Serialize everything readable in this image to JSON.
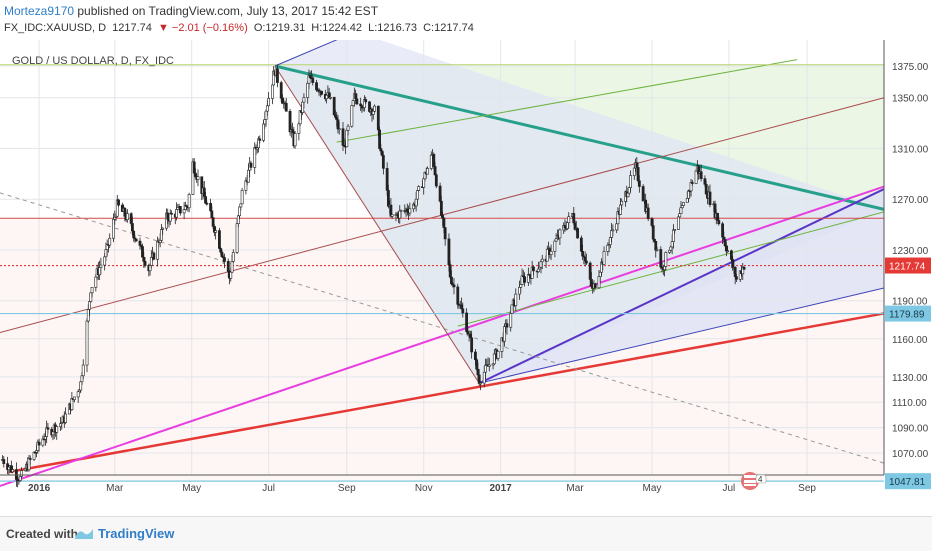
{
  "header": {
    "publisher": "Morteza9170",
    "published_text": " published on TradingView.com, July 13, 2017 15:42 EST",
    "symbol": "FX_IDC:XAUUSD, D",
    "last": "1217.74",
    "change": "▼ −2.01 (−0.16%)",
    "open": "O:1219.31",
    "high": "H:1224.42",
    "low": "L:1216.73",
    "close": "C:1217.74"
  },
  "footer": {
    "created_with": "Created with",
    "brand": "TradingView"
  },
  "chart_data": {
    "type": "candlestick",
    "title": "GOLD / US DOLLAR, D, FX_IDC",
    "y_ticks": [
      1375,
      1350,
      1310,
      1270,
      1230,
      1190,
      1160,
      1130,
      1110,
      1090,
      1070
    ],
    "y_tick_labels": [
      "1375.00",
      "1350.00",
      "1310.00",
      "1270.00",
      "1230.00",
      "1190.00",
      "1160.00",
      "1130.00",
      "1110.00",
      "1090.00",
      "1070.00"
    ],
    "x_ticks": [
      "2016-01-01",
      "2016-03-01",
      "2016-05-01",
      "2016-07-01",
      "2016-09-01",
      "2016-11-01",
      "2017-01-01",
      "2017-03-01",
      "2017-05-01",
      "2017-07-01",
      "2017-09-01"
    ],
    "x_tick_labels": [
      "2016",
      "Mar",
      "May",
      "Jul",
      "Sep",
      "Nov",
      "2017",
      "Mar",
      "May",
      "Jul",
      "Sep"
    ],
    "x_range": [
      "2015-12-01",
      "2017-11-01"
    ],
    "price_markers": [
      {
        "value": 1217.74,
        "label": "1217.74",
        "color": "#e53935"
      },
      {
        "value": 1179.89,
        "label": "1179.89",
        "color": "#7fc8e3"
      },
      {
        "value": 1047.81,
        "label": "1047.81",
        "color": "#7fc8e3"
      }
    ],
    "price_path": [
      {
        "date": "2015-12-03",
        "price": 1065
      },
      {
        "date": "2015-12-17",
        "price": 1050
      },
      {
        "date": "2016-01-06",
        "price": 1085
      },
      {
        "date": "2016-01-20",
        "price": 1095
      },
      {
        "date": "2016-02-03",
        "price": 1125
      },
      {
        "date": "2016-02-11",
        "price": 1200
      },
      {
        "date": "2016-02-24",
        "price": 1230
      },
      {
        "date": "2016-03-03",
        "price": 1265
      },
      {
        "date": "2016-03-11",
        "price": 1255
      },
      {
        "date": "2016-03-28",
        "price": 1215
      },
      {
        "date": "2016-04-11",
        "price": 1255
      },
      {
        "date": "2016-04-28",
        "price": 1265
      },
      {
        "date": "2016-05-02",
        "price": 1298
      },
      {
        "date": "2016-05-20",
        "price": 1245
      },
      {
        "date": "2016-05-31",
        "price": 1208
      },
      {
        "date": "2016-06-10",
        "price": 1275
      },
      {
        "date": "2016-06-24",
        "price": 1320
      },
      {
        "date": "2016-07-06",
        "price": 1372
      },
      {
        "date": "2016-07-21",
        "price": 1315
      },
      {
        "date": "2016-08-02",
        "price": 1365
      },
      {
        "date": "2016-08-18",
        "price": 1350
      },
      {
        "date": "2016-08-30",
        "price": 1310
      },
      {
        "date": "2016-09-07",
        "price": 1350
      },
      {
        "date": "2016-09-23",
        "price": 1340
      },
      {
        "date": "2016-10-06",
        "price": 1255
      },
      {
        "date": "2016-10-24",
        "price": 1265
      },
      {
        "date": "2016-11-08",
        "price": 1305
      },
      {
        "date": "2016-11-22",
        "price": 1210
      },
      {
        "date": "2016-12-05",
        "price": 1170
      },
      {
        "date": "2016-12-15",
        "price": 1128
      },
      {
        "date": "2016-12-30",
        "price": 1150
      },
      {
        "date": "2017-01-17",
        "price": 1205
      },
      {
        "date": "2017-02-03",
        "price": 1220
      },
      {
        "date": "2017-02-27",
        "price": 1258
      },
      {
        "date": "2017-03-15",
        "price": 1198
      },
      {
        "date": "2017-04-03",
        "price": 1255
      },
      {
        "date": "2017-04-18",
        "price": 1295
      },
      {
        "date": "2017-05-09",
        "price": 1215
      },
      {
        "date": "2017-05-26",
        "price": 1265
      },
      {
        "date": "2017-06-06",
        "price": 1295
      },
      {
        "date": "2017-06-22",
        "price": 1255
      },
      {
        "date": "2017-07-07",
        "price": 1207
      },
      {
        "date": "2017-07-13",
        "price": 1218
      }
    ],
    "drawings": [
      {
        "name": "teal-resistance-line",
        "color": "#26a08b",
        "width": 3,
        "from": {
          "date": "2016-07-06",
          "price": 1375
        },
        "to": {
          "date": "2017-11-01",
          "price": 1262
        }
      },
      {
        "name": "red-support-line",
        "color": "#e53935",
        "width": 2.5,
        "from": {
          "date": "2015-12-08",
          "price": 1055
        },
        "to": {
          "date": "2017-11-01",
          "price": 1180
        }
      },
      {
        "name": "magenta-trend-line",
        "color": "#e83de0",
        "width": 2,
        "from": {
          "date": "2015-12-01",
          "price": 1044
        },
        "to": {
          "date": "2017-11-01",
          "price": 1280
        }
      },
      {
        "name": "purple-trend-line",
        "color": "#5a35c9",
        "width": 2,
        "from": {
          "date": "2016-12-15",
          "price": 1125
        },
        "to": {
          "date": "2017-11-01",
          "price": 1278
        }
      },
      {
        "name": "blue-channel-line",
        "color": "#3d47b8",
        "width": 1,
        "from": {
          "date": "2016-12-15",
          "price": 1125
        },
        "to": {
          "date": "2017-11-01",
          "price": 1200
        }
      },
      {
        "name": "brown-channel-line",
        "color": "#a84d4d",
        "width": 1,
        "from": {
          "date": "2015-12-01",
          "price": 1165
        },
        "to": {
          "date": "2017-11-01",
          "price": 1350
        }
      },
      {
        "name": "green-channel-upper-line",
        "color": "#6db33f",
        "width": 1,
        "from": {
          "date": "2016-08-24",
          "price": 1315
        },
        "to": {
          "date": "2017-08-24",
          "price": 1380
        }
      },
      {
        "name": "green-channel-lower-line",
        "color": "#6db33f",
        "width": 1,
        "from": {
          "date": "2016-11-28",
          "price": 1170
        },
        "to": {
          "date": "2017-11-01",
          "price": 1260
        }
      },
      {
        "name": "olive-horizontal-line",
        "color": "#b6d36b",
        "width": 1,
        "from": {
          "date": "2015-12-01",
          "price": 1376
        },
        "to": {
          "date": "2017-11-01",
          "price": 1376
        }
      },
      {
        "name": "red-horizontal-line",
        "color": "#d44a4a",
        "width": 1,
        "from": {
          "date": "2015-12-01",
          "price": 1255
        },
        "to": {
          "date": "2017-11-01",
          "price": 1255
        }
      },
      {
        "name": "dashed-trend-line",
        "color": "#999999",
        "width": 1,
        "dash": true,
        "from": {
          "date": "2015-12-01",
          "price": 1275
        },
        "to": {
          "date": "2017-11-01",
          "price": 1062
        }
      },
      {
        "name": "pitchfork-left-line",
        "color": "#a84d4d",
        "width": 1,
        "from": {
          "date": "2016-07-06",
          "price": 1375
        },
        "to": {
          "date": "2016-12-15",
          "price": 1125
        }
      },
      {
        "name": "blue-ray-line",
        "color": "#3d47b8",
        "width": 1,
        "from": {
          "date": "2016-07-06",
          "price": 1375
        },
        "to": {
          "date": "2016-09-08",
          "price": 1402
        }
      }
    ]
  }
}
